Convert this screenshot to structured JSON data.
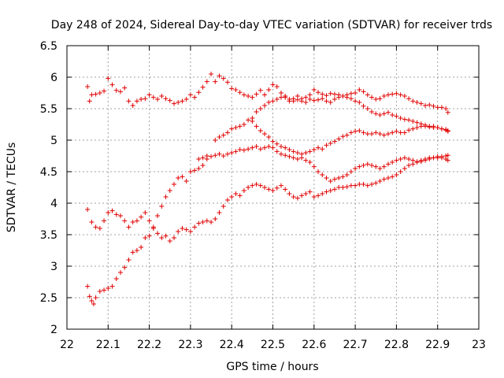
{
  "chart_data": {
    "type": "scatter",
    "title": "Day 248 of 2024, Sidereal Day-to-day VTEC variation (SDTVAR) for receiver trds",
    "xlabel": "GPS time / hours",
    "ylabel": "SDTVAR / TECUs",
    "xlim": [
      22,
      23
    ],
    "ylim": [
      2,
      6.5
    ],
    "xticks": [
      "22",
      "22.1",
      "22.2",
      "22.3",
      "22.4",
      "22.5",
      "22.6",
      "22.7",
      "22.8",
      "22.9",
      "23"
    ],
    "yticks": [
      "2",
      "2.5",
      "3",
      "3.5",
      "4",
      "4.5",
      "5",
      "5.5",
      "6",
      "6.5"
    ],
    "grid": true,
    "marker": "+",
    "color": "#e00000",
    "series": [
      {
        "x": [
          22.05,
          22.055,
          22.06,
          22.07,
          22.08,
          22.09,
          22.1,
          22.11,
          22.12,
          22.13,
          22.14,
          22.15,
          22.16,
          22.17,
          22.18,
          22.19,
          22.2,
          22.21,
          22.22,
          22.23,
          22.24,
          22.25,
          22.26,
          22.27,
          22.28,
          22.29,
          22.3,
          22.31,
          22.32,
          22.33,
          22.34,
          22.35,
          22.36,
          22.37,
          22.38,
          22.39,
          22.4,
          22.41,
          22.42,
          22.43,
          22.44,
          22.45,
          22.46,
          22.47,
          22.48,
          22.49,
          22.5,
          22.51,
          22.52,
          22.53,
          22.54,
          22.55,
          22.56,
          22.57,
          22.58,
          22.59,
          22.6,
          22.61,
          22.62,
          22.63,
          22.64,
          22.65,
          22.66,
          22.67,
          22.68,
          22.69,
          22.7,
          22.71,
          22.72,
          22.73,
          22.74,
          22.75,
          22.76,
          22.77,
          22.78,
          22.79,
          22.8,
          22.81,
          22.82,
          22.83,
          22.84,
          22.85,
          22.86,
          22.87,
          22.88,
          22.89,
          22.9,
          22.91,
          22.92,
          22.925
        ],
        "y": [
          5.85,
          5.62,
          5.72,
          5.73,
          5.75,
          5.78,
          5.98,
          5.88,
          5.79,
          5.77,
          5.83,
          5.62,
          5.55,
          5.62,
          5.65,
          5.66,
          5.72,
          5.68,
          5.65,
          5.7,
          5.66,
          5.63,
          5.58,
          5.6,
          5.62,
          5.65,
          5.72,
          5.68,
          5.76,
          5.84,
          5.93,
          6.05,
          5.93,
          6.02,
          5.98,
          5.92,
          5.82,
          5.8,
          5.76,
          5.72,
          5.7,
          5.68,
          5.73,
          5.79,
          5.72,
          5.8,
          5.88,
          5.85,
          5.75,
          5.68,
          5.62,
          5.66,
          5.7,
          5.62,
          5.6,
          5.72,
          5.8,
          5.76,
          5.73,
          5.71,
          5.74,
          5.73,
          5.72,
          5.7,
          5.72,
          5.74,
          5.75,
          5.8,
          5.77,
          5.72,
          5.68,
          5.65,
          5.66,
          5.7,
          5.72,
          5.73,
          5.74,
          5.72,
          5.7,
          5.66,
          5.62,
          5.6,
          5.58,
          5.55,
          5.56,
          5.54,
          5.52,
          5.52,
          5.5,
          5.44
        ]
      },
      {
        "x": [
          22.45,
          22.46,
          22.47,
          22.48,
          22.49,
          22.5,
          22.51,
          22.52,
          22.53,
          22.54,
          22.55,
          22.56,
          22.57,
          22.58,
          22.59,
          22.6,
          22.61,
          22.62,
          22.63,
          22.64,
          22.65,
          22.66,
          22.67,
          22.68,
          22.69,
          22.7,
          22.71,
          22.72,
          22.73,
          22.74,
          22.75,
          22.76,
          22.77,
          22.78,
          22.79,
          22.8,
          22.81,
          22.82,
          22.83,
          22.84,
          22.85,
          22.86,
          22.87,
          22.88,
          22.89,
          22.9,
          22.91,
          22.92,
          22.925
        ],
        "y": [
          5.35,
          5.45,
          5.5,
          5.55,
          5.6,
          5.62,
          5.65,
          5.68,
          5.7,
          5.65,
          5.62,
          5.64,
          5.66,
          5.68,
          5.65,
          5.63,
          5.64,
          5.66,
          5.62,
          5.6,
          5.65,
          5.68,
          5.7,
          5.68,
          5.66,
          5.62,
          5.6,
          5.54,
          5.5,
          5.45,
          5.42,
          5.4,
          5.42,
          5.44,
          5.4,
          5.38,
          5.35,
          5.33,
          5.32,
          5.3,
          5.28,
          5.26,
          5.24,
          5.22,
          5.22,
          5.2,
          5.18,
          5.17,
          5.15
        ]
      },
      {
        "x": [
          22.36,
          22.37,
          22.38,
          22.39,
          22.4,
          22.41,
          22.42,
          22.43,
          22.44,
          22.45,
          22.46,
          22.47,
          22.48,
          22.49,
          22.5,
          22.51,
          22.52,
          22.53,
          22.54,
          22.55,
          22.56,
          22.57,
          22.58,
          22.59,
          22.6,
          22.61,
          22.62,
          22.63,
          22.64,
          22.65,
          22.66,
          22.67,
          22.68,
          22.69,
          22.7,
          22.71,
          22.72,
          22.73,
          22.74,
          22.75,
          22.76,
          22.77,
          22.78,
          22.79,
          22.8,
          22.81,
          22.82,
          22.83,
          22.84,
          22.85,
          22.86,
          22.87,
          22.88,
          22.89,
          22.9,
          22.91,
          22.92,
          22.925
        ],
        "y": [
          5.0,
          5.05,
          5.08,
          5.12,
          5.18,
          5.2,
          5.22,
          5.25,
          5.32,
          5.3,
          5.22,
          5.15,
          5.1,
          5.05,
          4.98,
          4.94,
          4.9,
          4.88,
          4.85,
          4.82,
          4.8,
          4.78,
          4.8,
          4.82,
          4.85,
          4.88,
          4.86,
          4.92,
          4.95,
          4.98,
          5.02,
          5.06,
          5.08,
          5.12,
          5.14,
          5.15,
          5.12,
          5.1,
          5.1,
          5.12,
          5.1,
          5.08,
          5.1,
          5.12,
          5.14,
          5.12,
          5.12,
          5.16,
          5.18,
          5.2,
          5.22,
          5.22,
          5.21,
          5.2,
          5.2,
          5.18,
          5.16,
          5.14
        ]
      },
      {
        "x": [
          22.32,
          22.33,
          22.34,
          22.35,
          22.36,
          22.37,
          22.38,
          22.39,
          22.4,
          22.41,
          22.42,
          22.43,
          22.44,
          22.45,
          22.46,
          22.47,
          22.48,
          22.49,
          22.5,
          22.51,
          22.52,
          22.53,
          22.54,
          22.55,
          22.56,
          22.57,
          22.58,
          22.59,
          22.6,
          22.61,
          22.62,
          22.63,
          22.64,
          22.65,
          22.66,
          22.67,
          22.68,
          22.69,
          22.7,
          22.71,
          22.72,
          22.73,
          22.74,
          22.75,
          22.76,
          22.77,
          22.78,
          22.79,
          22.8,
          22.81,
          22.82,
          22.83,
          22.84,
          22.85,
          22.86,
          22.87,
          22.88,
          22.89,
          22.9,
          22.91,
          22.92,
          22.925
        ],
        "y": [
          4.7,
          4.72,
          4.75,
          4.74,
          4.76,
          4.78,
          4.75,
          4.78,
          4.8,
          4.82,
          4.85,
          4.84,
          4.86,
          4.88,
          4.9,
          4.86,
          4.88,
          4.9,
          4.88,
          4.82,
          4.78,
          4.76,
          4.74,
          4.72,
          4.7,
          4.72,
          4.68,
          4.65,
          4.58,
          4.5,
          4.45,
          4.4,
          4.35,
          4.38,
          4.4,
          4.42,
          4.45,
          4.5,
          4.55,
          4.58,
          4.6,
          4.62,
          4.6,
          4.58,
          4.55,
          4.58,
          4.62,
          4.65,
          4.68,
          4.7,
          4.72,
          4.7,
          4.68,
          4.66,
          4.68,
          4.7,
          4.72,
          4.72,
          4.74,
          4.72,
          4.7,
          4.68
        ]
      },
      {
        "x": [
          22.05,
          22.06,
          22.07,
          22.08,
          22.09,
          22.1,
          22.11,
          22.12,
          22.13,
          22.14,
          22.15,
          22.16,
          22.17,
          22.18,
          22.19,
          22.2,
          22.21,
          22.22,
          22.23,
          22.24,
          22.25,
          22.26,
          22.27,
          22.28,
          22.29,
          22.3,
          22.31,
          22.32,
          22.33,
          22.34,
          22.35,
          22.36,
          22.37,
          22.38,
          22.39,
          22.4,
          22.41,
          22.42,
          22.43,
          22.44,
          22.45,
          22.46,
          22.47,
          22.48,
          22.49,
          22.5,
          22.51,
          22.52,
          22.53,
          22.54,
          22.55,
          22.56,
          22.57,
          22.58,
          22.59,
          22.6,
          22.61,
          22.62,
          22.63,
          22.64,
          22.65,
          22.66,
          22.67,
          22.68,
          22.69,
          22.7,
          22.71,
          22.72,
          22.73,
          22.74,
          22.75,
          22.76,
          22.77,
          22.78,
          22.79,
          22.8,
          22.81,
          22.82,
          22.83,
          22.84,
          22.85,
          22.86,
          22.87,
          22.88,
          22.89,
          22.9,
          22.91,
          22.92,
          22.925
        ],
        "y": [
          3.9,
          3.7,
          3.62,
          3.6,
          3.72,
          3.85,
          3.88,
          3.82,
          3.8,
          3.72,
          3.62,
          3.7,
          3.72,
          3.78,
          3.85,
          3.72,
          3.62,
          3.52,
          3.45,
          3.48,
          3.4,
          3.45,
          3.55,
          3.6,
          3.58,
          3.55,
          3.62,
          3.68,
          3.7,
          3.72,
          3.7,
          3.75,
          3.85,
          3.95,
          4.05,
          4.1,
          4.15,
          4.12,
          4.2,
          4.25,
          4.28,
          4.3,
          4.28,
          4.25,
          4.22,
          4.2,
          4.24,
          4.28,
          4.22,
          4.15,
          4.1,
          4.08,
          4.12,
          4.15,
          4.18,
          4.1,
          4.12,
          4.15,
          4.18,
          4.2,
          4.22,
          4.25,
          4.25,
          4.26,
          4.28,
          4.28,
          4.3,
          4.3,
          4.28,
          4.3,
          4.32,
          4.35,
          4.38,
          4.4,
          4.42,
          4.45,
          4.5,
          4.55,
          4.6,
          4.62,
          4.65,
          4.66,
          4.68,
          4.7,
          4.72,
          4.72,
          4.74,
          4.75,
          4.76
        ]
      },
      {
        "x": [
          22.05,
          22.055,
          22.06,
          22.065,
          22.07,
          22.08,
          22.09,
          22.1,
          22.11,
          22.12,
          22.13,
          22.14,
          22.15,
          22.16,
          22.17,
          22.18,
          22.19,
          22.2,
          22.21,
          22.22,
          22.23,
          22.24,
          22.25,
          22.26,
          22.27,
          22.28,
          22.29,
          22.3,
          22.31,
          22.32,
          22.33,
          22.34
        ],
        "y": [
          2.68,
          2.52,
          2.45,
          2.4,
          2.5,
          2.6,
          2.62,
          2.65,
          2.68,
          2.8,
          2.9,
          2.98,
          3.1,
          3.22,
          3.25,
          3.3,
          3.45,
          3.48,
          3.6,
          3.8,
          3.95,
          4.1,
          4.2,
          4.3,
          4.4,
          4.42,
          4.35,
          4.5,
          4.52,
          4.55,
          4.6,
          4.7
        ]
      }
    ]
  }
}
